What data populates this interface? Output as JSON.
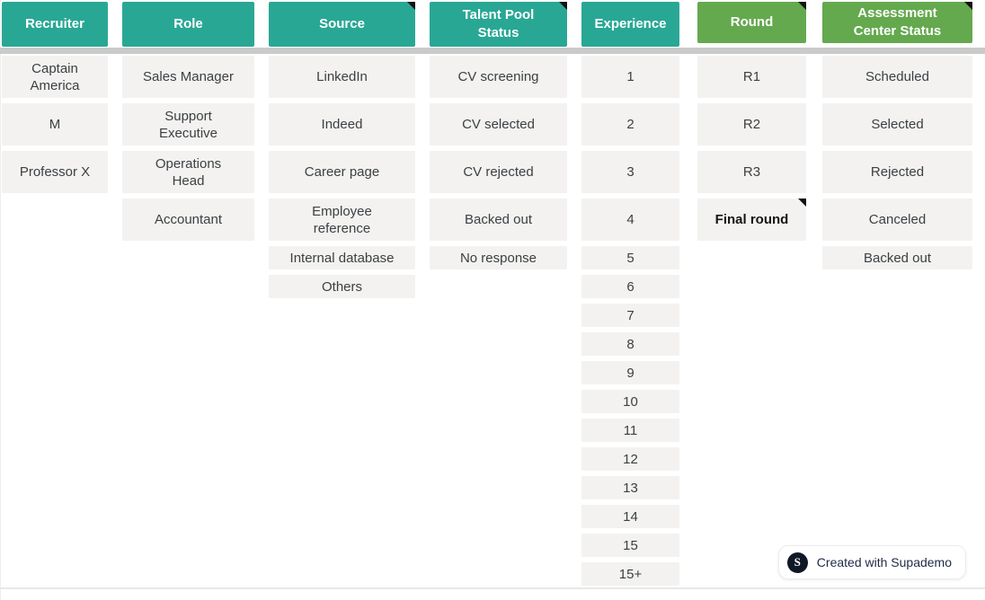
{
  "colors": {
    "teal_header": "#29a795",
    "green_header": "#64a94e",
    "header_text": "#ffffff",
    "cell_bg": "#f3f2f0",
    "cell_text": "#3c4043",
    "note_marker": "#111111",
    "divider_bar": "#cacaca",
    "bottom_line": "#e8e8e8",
    "badge_text": "#1f2a44",
    "badge_logo_bg": "#101828"
  },
  "table": {
    "columns": [
      {
        "key": "recruiter",
        "header": "Recruiter",
        "header_color": "teal",
        "header_note": false,
        "items": [
          {
            "label": "Captain\nAmerica"
          },
          {
            "label": "M"
          },
          {
            "label": "Professor X"
          }
        ]
      },
      {
        "key": "role",
        "header": "Role",
        "header_color": "teal",
        "header_note": false,
        "items": [
          {
            "label": "Sales Manager"
          },
          {
            "label": "Support\nExecutive"
          },
          {
            "label": "Operations\nHead"
          },
          {
            "label": "Accountant"
          }
        ]
      },
      {
        "key": "source",
        "header": "Source",
        "header_color": "teal",
        "header_note": true,
        "items": [
          {
            "label": "LinkedIn"
          },
          {
            "label": "Indeed"
          },
          {
            "label": "Career page"
          },
          {
            "label": "Employee\nreference"
          },
          {
            "label": "Internal database"
          },
          {
            "label": "Others"
          }
        ]
      },
      {
        "key": "talent-pool-status",
        "header": "Talent Pool\nStatus",
        "header_color": "teal",
        "header_note": true,
        "items": [
          {
            "label": "CV screening"
          },
          {
            "label": "CV selected"
          },
          {
            "label": "CV rejected"
          },
          {
            "label": "Backed out"
          },
          {
            "label": "No response"
          }
        ]
      },
      {
        "key": "experience",
        "header": "Experience",
        "header_color": "teal",
        "header_note": false,
        "items": [
          {
            "label": "1"
          },
          {
            "label": "2"
          },
          {
            "label": "3"
          },
          {
            "label": "4"
          },
          {
            "label": "5"
          },
          {
            "label": "6"
          },
          {
            "label": "7"
          },
          {
            "label": "8"
          },
          {
            "label": "9"
          },
          {
            "label": "10"
          },
          {
            "label": "11"
          },
          {
            "label": "12"
          },
          {
            "label": "13"
          },
          {
            "label": "14"
          },
          {
            "label": "15"
          },
          {
            "label": "15+"
          }
        ]
      },
      {
        "key": "round",
        "header": "Round",
        "header_color": "green",
        "header_note": true,
        "items": [
          {
            "label": "R1"
          },
          {
            "label": "R2"
          },
          {
            "label": "R3"
          },
          {
            "label": "Final round",
            "bold": true,
            "note": true
          }
        ]
      },
      {
        "key": "assessment-center-status",
        "header": "Assessment\nCenter Status",
        "header_color": "green",
        "header_note": true,
        "items": [
          {
            "label": "Scheduled"
          },
          {
            "label": "Selected"
          },
          {
            "label": "Rejected"
          },
          {
            "label": "Canceled"
          },
          {
            "label": "Backed out"
          }
        ]
      }
    ]
  },
  "badge": {
    "logo_letter": "S",
    "label": "Created with Supademo"
  }
}
